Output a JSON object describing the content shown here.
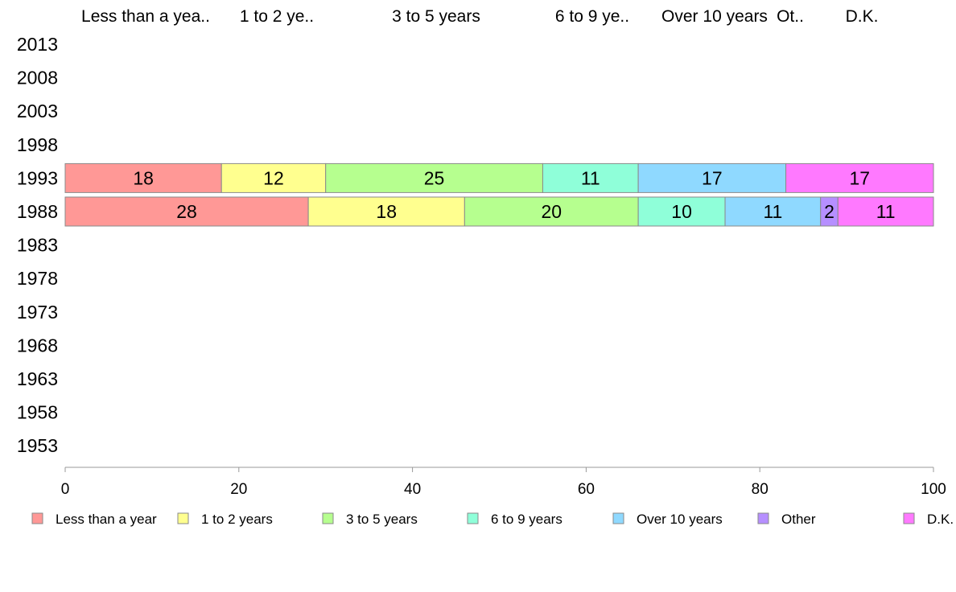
{
  "chart_data": {
    "type": "bar",
    "orientation": "horizontal",
    "stacked": true,
    "categories": [
      "2013",
      "2008",
      "2003",
      "1998",
      "1993",
      "1988",
      "1983",
      "1978",
      "1973",
      "1968",
      "1963",
      "1958",
      "1953"
    ],
    "series": [
      {
        "name": "Less than a year",
        "short": "Less than a yea..",
        "color": "#ff9896",
        "values": [
          null,
          null,
          null,
          null,
          18,
          28,
          null,
          null,
          null,
          null,
          null,
          null,
          null
        ]
      },
      {
        "name": "1 to 2 years",
        "short": "1 to 2 ye..",
        "color": "#ffff8f",
        "values": [
          null,
          null,
          null,
          null,
          12,
          18,
          null,
          null,
          null,
          null,
          null,
          null,
          null
        ]
      },
      {
        "name": "3 to 5 years",
        "short": "3 to 5 years",
        "color": "#b6ff8f",
        "values": [
          null,
          null,
          null,
          null,
          25,
          20,
          null,
          null,
          null,
          null,
          null,
          null,
          null
        ]
      },
      {
        "name": "6 to 9 years",
        "short": "6 to 9 ye..",
        "color": "#8fffd9",
        "values": [
          null,
          null,
          null,
          null,
          11,
          10,
          null,
          null,
          null,
          null,
          null,
          null,
          null
        ]
      },
      {
        "name": "Over 10 years",
        "short": "Over 10 years",
        "color": "#8fd9ff",
        "values": [
          null,
          null,
          null,
          null,
          17,
          11,
          null,
          null,
          null,
          null,
          null,
          null,
          null
        ]
      },
      {
        "name": "Other",
        "short": "Ot..",
        "color": "#b68fff",
        "values": [
          null,
          null,
          null,
          null,
          null,
          2,
          null,
          null,
          null,
          null,
          null,
          null,
          null
        ]
      },
      {
        "name": "D.K.",
        "short": "D.K.",
        "color": "#ff79ff",
        "values": [
          null,
          null,
          null,
          null,
          17,
          11,
          null,
          null,
          null,
          null,
          null,
          null,
          null
        ]
      }
    ],
    "xlim": [
      0,
      100
    ],
    "xticks": [
      0,
      20,
      40,
      60,
      80,
      100
    ],
    "grid": false,
    "legend_position": "bottom"
  }
}
